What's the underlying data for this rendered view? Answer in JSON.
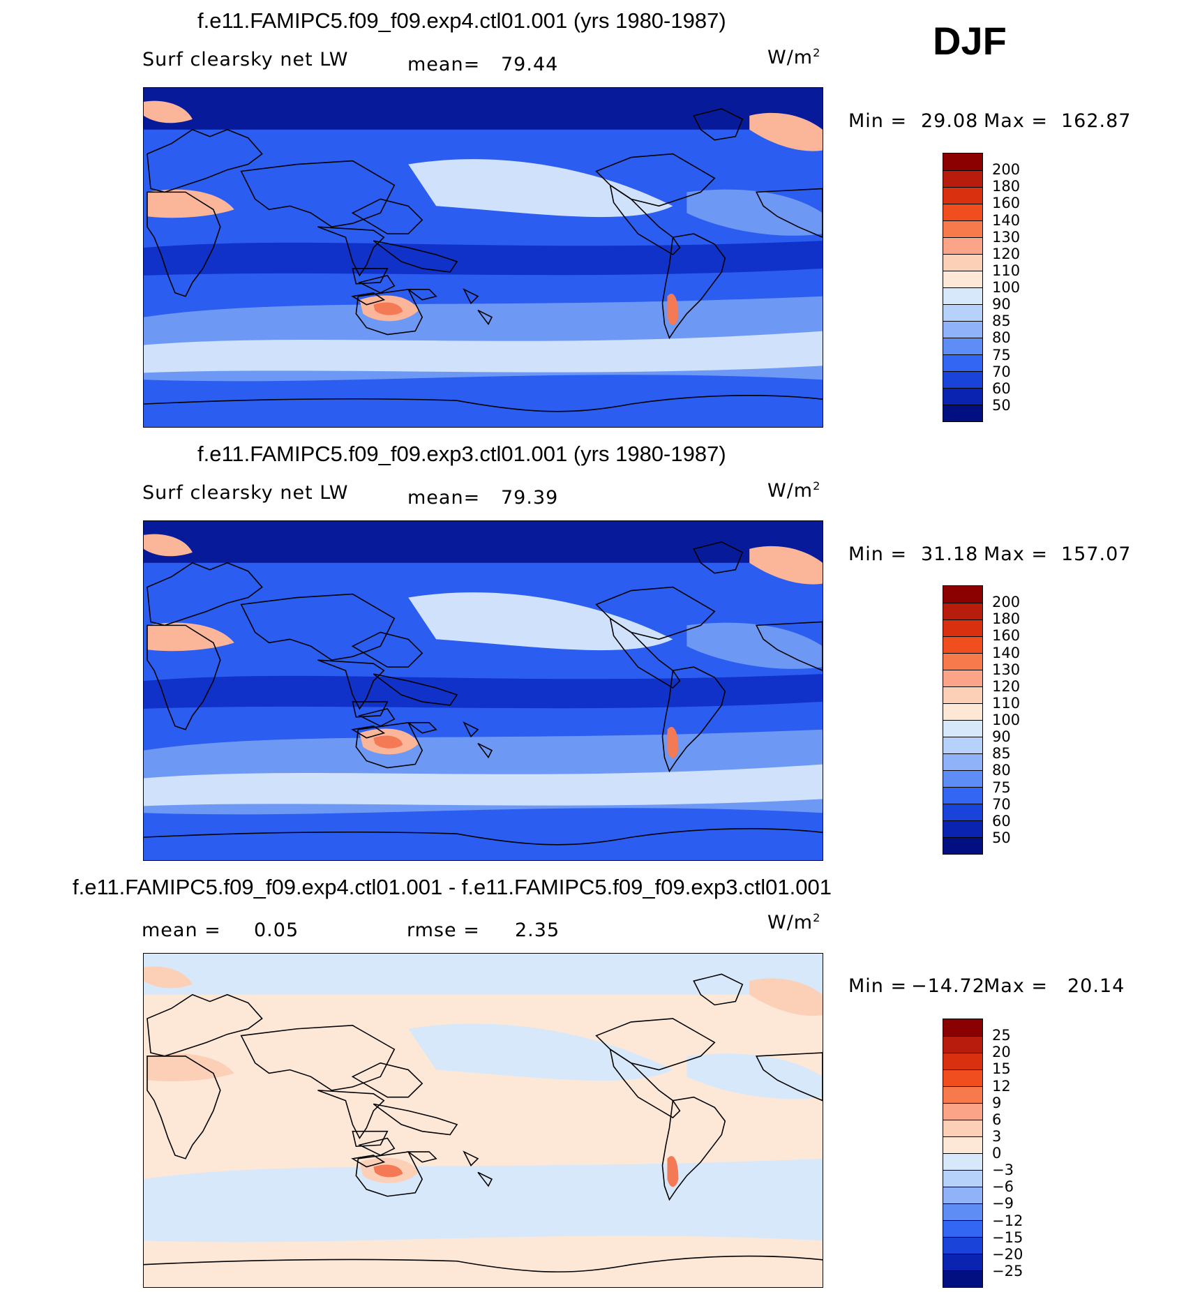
{
  "season": "DJF",
  "chart_data": [
    {
      "type": "heatmap",
      "title": "f.e11.FAMIPC5.f09_f09.exp4.ctl01.001 (yrs 1980-1987)",
      "variable": "Surf clearsky net LW",
      "mean_label": "mean=",
      "mean": "79.44",
      "units": "W/m",
      "units_sup": "2",
      "min_label": "Min =",
      "min": "29.08",
      "max_label": "Max =",
      "max": "162.87",
      "levels": [
        "200",
        "180",
        "160",
        "140",
        "130",
        "120",
        "110",
        "100",
        "90",
        "85",
        "80",
        "75",
        "70",
        "60",
        "50"
      ],
      "colors": [
        "#8b0000",
        "#b71c0c",
        "#d9300f",
        "#f04e1f",
        "#f77a4c",
        "#fba487",
        "#fcd0b6",
        "#fde8d8",
        "#d7e8fb",
        "#b6d1fa",
        "#8fb2f8",
        "#5e8df6",
        "#3366f2",
        "#1a44d9",
        "#0a23b0",
        "#020f80"
      ],
      "map_palette": {
        "ocean_deep": "#1032c8",
        "ocean_mid": "#2a5df0",
        "ocean_light": "#6d99f5",
        "pale": "#cfe1fb",
        "warm": "#fbb69a",
        "hot": "#f47a55",
        "polar": "#071b9a"
      }
    },
    {
      "type": "heatmap",
      "title": "f.e11.FAMIPC5.f09_f09.exp3.ctl01.001 (yrs 1980-1987)",
      "variable": "Surf clearsky net LW",
      "mean_label": "mean=",
      "mean": "79.39",
      "units": "W/m",
      "units_sup": "2",
      "min_label": "Min =",
      "min": "31.18",
      "max_label": "Max =",
      "max": "157.07",
      "levels": [
        "200",
        "180",
        "160",
        "140",
        "130",
        "120",
        "110",
        "100",
        "90",
        "85",
        "80",
        "75",
        "70",
        "60",
        "50"
      ],
      "colors": [
        "#8b0000",
        "#b71c0c",
        "#d9300f",
        "#f04e1f",
        "#f77a4c",
        "#fba487",
        "#fcd0b6",
        "#fde8d8",
        "#d7e8fb",
        "#b6d1fa",
        "#8fb2f8",
        "#5e8df6",
        "#3366f2",
        "#1a44d9",
        "#0a23b0",
        "#020f80"
      ],
      "map_palette": {
        "ocean_deep": "#1032c8",
        "ocean_mid": "#2a5df0",
        "ocean_light": "#6d99f5",
        "pale": "#cfe1fb",
        "warm": "#fbb69a",
        "hot": "#f47a55",
        "polar": "#071b9a"
      }
    },
    {
      "type": "heatmap",
      "title": "f.e11.FAMIPC5.f09_f09.exp4.ctl01.001 - f.e11.FAMIPC5.f09_f09.exp3.ctl01.001",
      "mean_label": "mean =",
      "mean": "0.05",
      "rmse_label": "rmse =",
      "rmse": "2.35",
      "units": "W/m",
      "units_sup": "2",
      "min_label": "Min =",
      "min": "−14.72",
      "max_label": "Max =",
      "max": "20.14",
      "levels": [
        "25",
        "20",
        "15",
        "12",
        "9",
        "6",
        "3",
        "0",
        "−3",
        "−6",
        "−9",
        "−12",
        "−15",
        "−20",
        "−25"
      ],
      "colors": [
        "#8b0000",
        "#b71c0c",
        "#d9300f",
        "#f04e1f",
        "#f77a4c",
        "#fba487",
        "#fcd0b6",
        "#fde8d8",
        "#d7e8fb",
        "#b6d1fa",
        "#8fb2f8",
        "#5e8df6",
        "#3366f2",
        "#1a44d9",
        "#0a23b0",
        "#020f80"
      ],
      "map_palette": {
        "ocean_deep": "#fde8d8",
        "ocean_mid": "#fde8d8",
        "ocean_light": "#d7e8fb",
        "pale": "#d7e8fb",
        "warm": "#fcd0b6",
        "hot": "#f47a55",
        "polar": "#d7e8fb"
      }
    }
  ]
}
